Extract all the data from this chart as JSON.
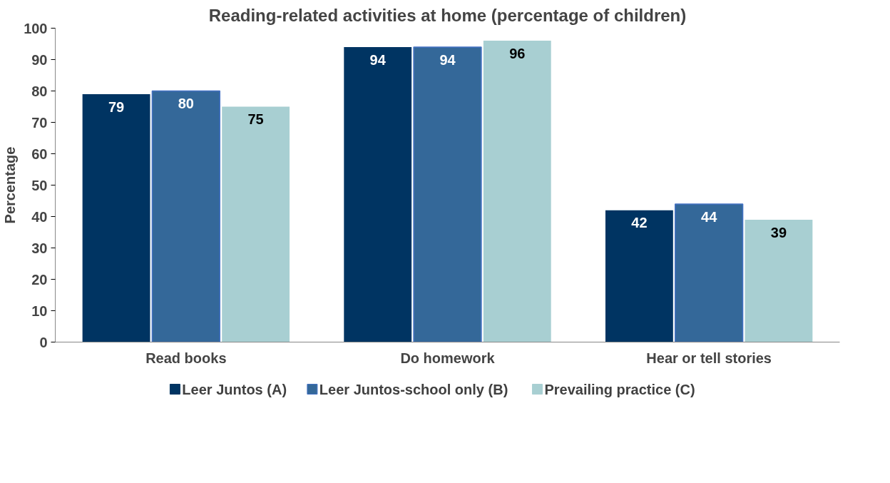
{
  "chart_data": {
    "type": "bar",
    "title": "Reading-related activities at home (percentage of children)",
    "ylabel": "Percentage",
    "categories": [
      "Read books",
      "Do homework",
      "Hear or tell stories"
    ],
    "series": [
      {
        "name": "Leer Juntos (A)",
        "color": "#003462",
        "values": [
          79,
          94,
          42
        ]
      },
      {
        "name": "Leer Juntos-school only (B)",
        "color": "#346899",
        "values": [
          80,
          94,
          44
        ]
      },
      {
        "name": "Prevailing practice (C)",
        "color": "#a8cfd2",
        "values": [
          75,
          96,
          39
        ]
      }
    ],
    "ylim": [
      0,
      100
    ],
    "yticks": [
      0,
      10,
      20,
      30,
      40,
      50,
      60,
      70,
      80,
      90,
      100
    ],
    "grid": false,
    "legend": "bottom",
    "data_labels": true
  }
}
